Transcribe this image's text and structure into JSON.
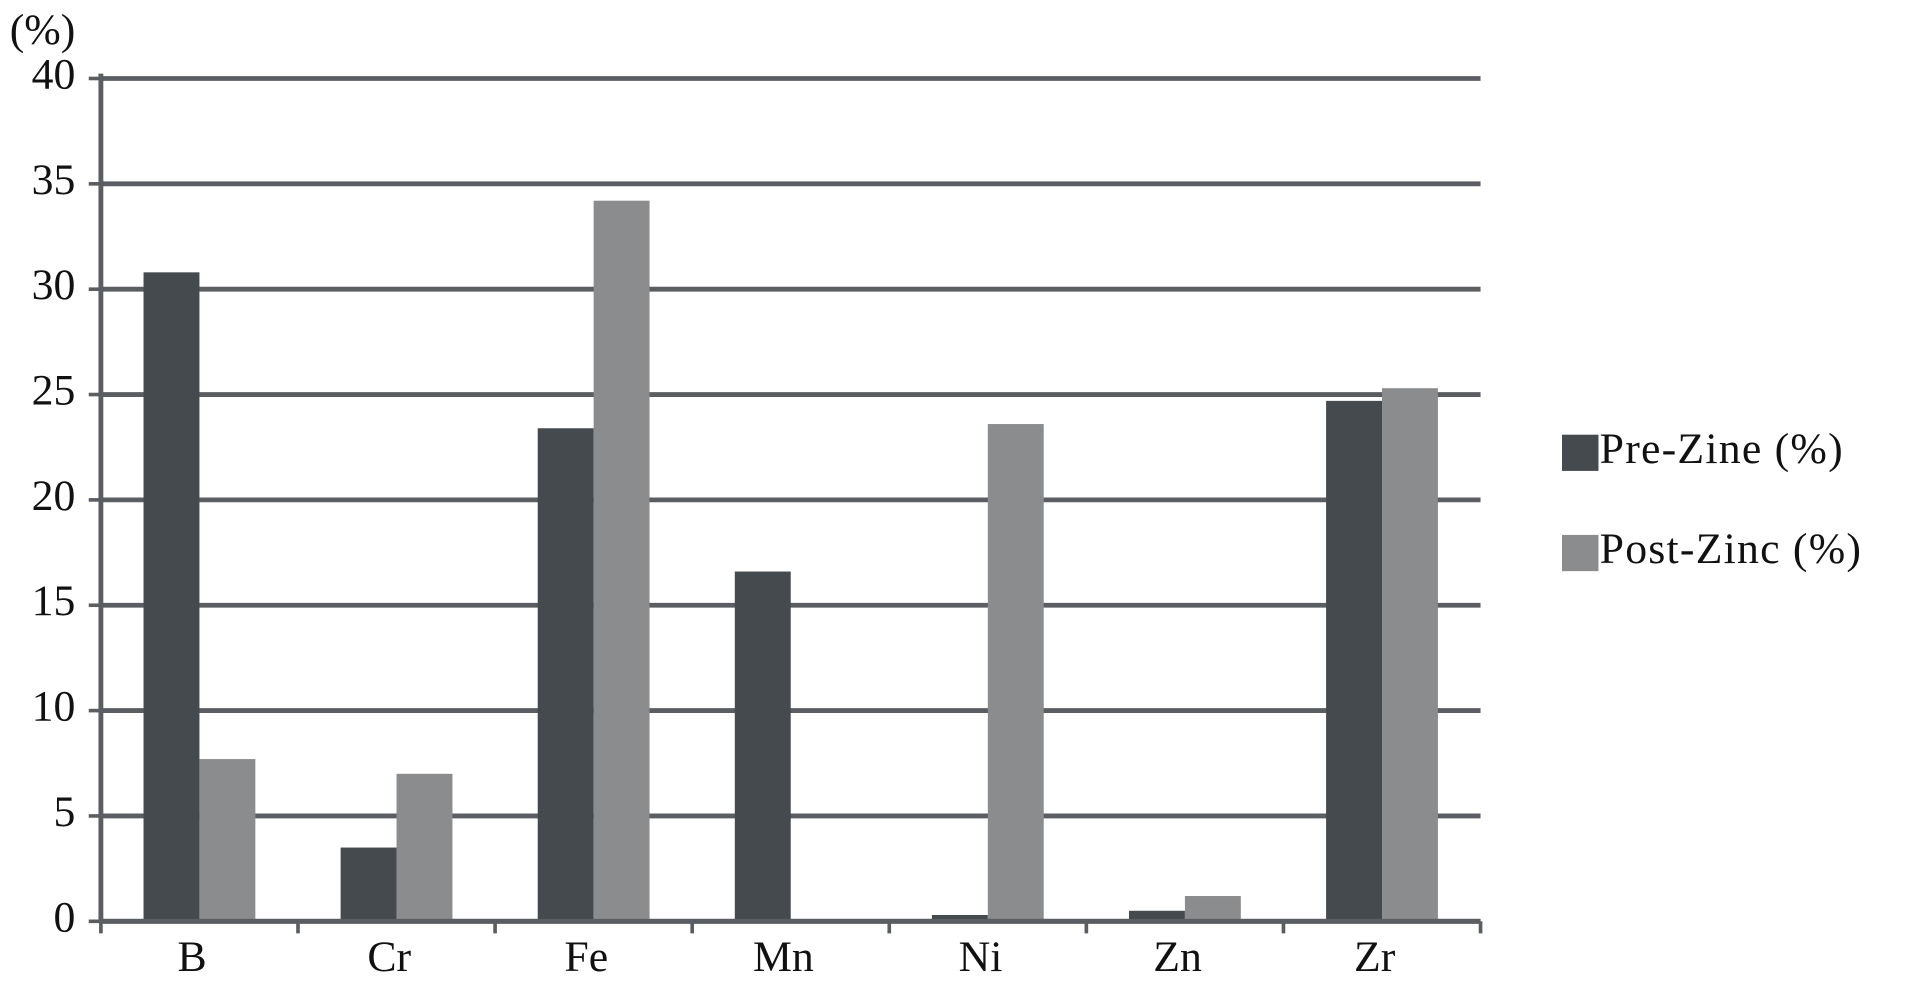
{
  "chart_data": {
    "type": "bar",
    "y_label": "(%)",
    "categories": [
      "B",
      "Cr",
      "Fe",
      "Mn",
      "Ni",
      "Zn",
      "Zr"
    ],
    "series": [
      {
        "name": "Pre-Zine (%)",
        "color": "#454a4f",
        "values": [
          30.8,
          3.5,
          23.4,
          16.6,
          0.3,
          0.5,
          24.7
        ]
      },
      {
        "name": "Post-Zinc (%)",
        "color": "#8a8c8e",
        "values": [
          7.7,
          7.0,
          34.2,
          0,
          23.6,
          1.2,
          25.3
        ]
      }
    ],
    "ylim": [
      0,
      40
    ],
    "yticks": [
      0,
      5,
      10,
      15,
      20,
      25,
      30,
      35,
      40
    ],
    "grid": true,
    "legend": "right"
  }
}
